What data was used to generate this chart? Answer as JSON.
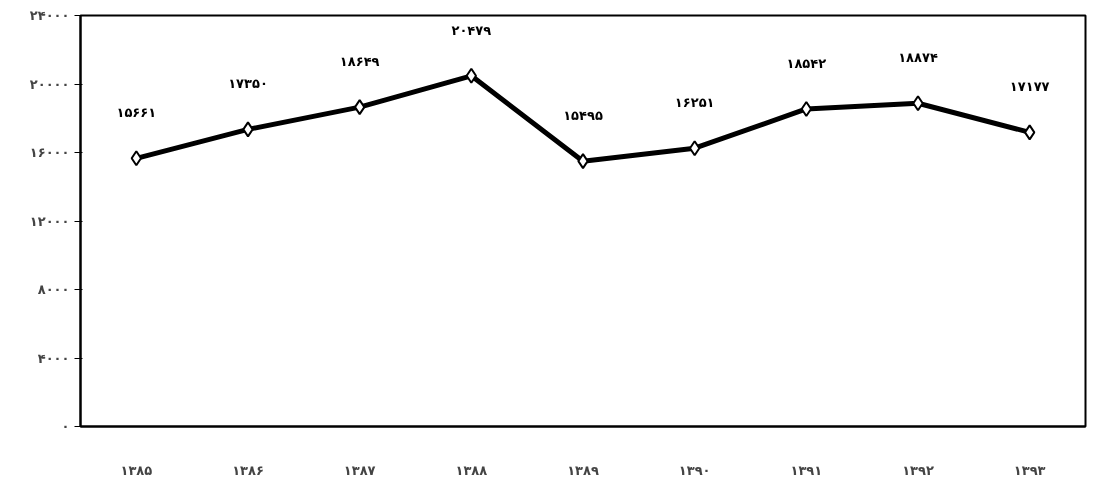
{
  "chart_data": {
    "type": "line",
    "categories": [
      "۱۳۸۵",
      "۱۳۸۶",
      "۱۳۸۷",
      "۱۳۸۸",
      "۱۳۸۹",
      "۱۳۹۰",
      "۱۳۹۱",
      "۱۳۹۲",
      "۱۳۹۳"
    ],
    "series": [
      {
        "color": "#000000",
        "values": [
          15661,
          17350,
          18649,
          20479,
          15495,
          16251,
          18542,
          18874,
          17177
        ],
        "value_labels": [
          "۱۵۶۶۱",
          "۱۷۳۵۰",
          "۱۸۶۴۹",
          "۲۰۴۷۹",
          "۱۵۴۹۵",
          "۱۶۲۵۱",
          "۱۸۵۴۲",
          "۱۸۸۷۴",
          "۱۷۱۷۷"
        ]
      }
    ],
    "ylim": [
      0,
      24000
    ],
    "yticks": [
      {
        "value": 0,
        "label": "۰"
      },
      {
        "value": 4000,
        "label": "۴۰۰۰"
      },
      {
        "value": 8000,
        "label": "۸۰۰۰"
      },
      {
        "value": 12000,
        "label": "۱۲۰۰۰"
      },
      {
        "value": 16000,
        "label": "۱۶۰۰۰"
      },
      {
        "value": 20000,
        "label": "۲۰۰۰۰"
      },
      {
        "value": 24000,
        "label": "۲۴۰۰۰"
      }
    ],
    "marker": "diamond",
    "grid": false
  }
}
